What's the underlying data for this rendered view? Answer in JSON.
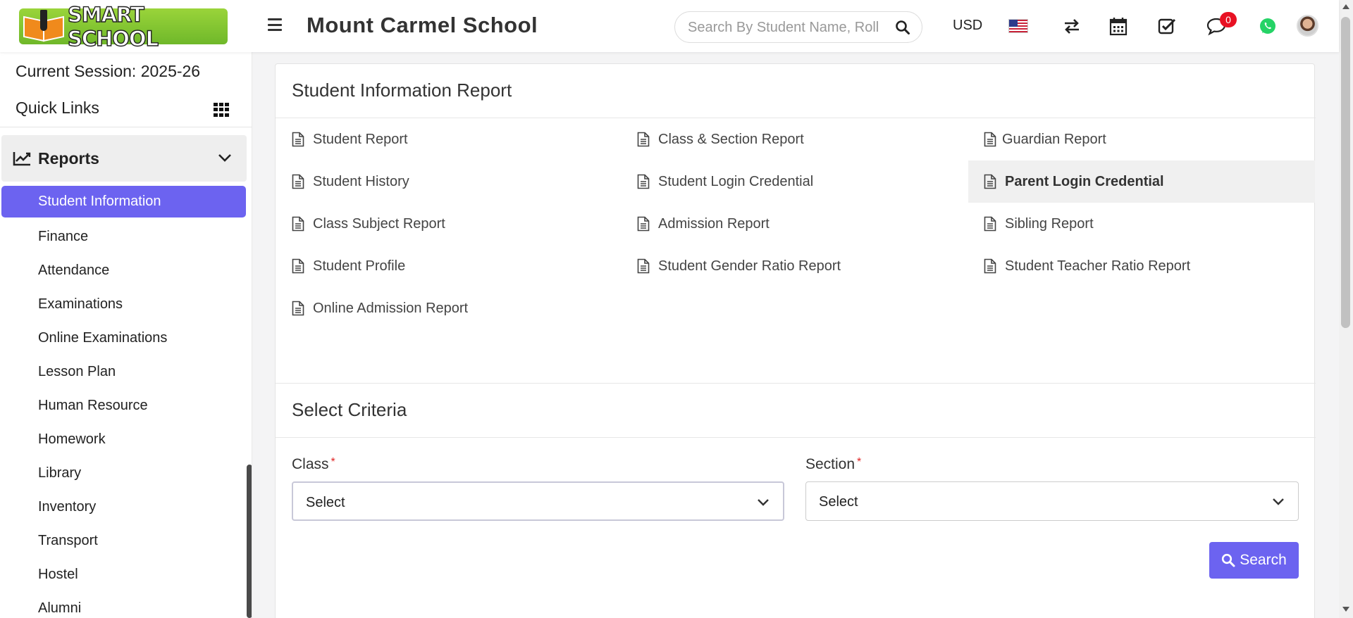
{
  "header": {
    "logo_text": "SMART SCHOOL",
    "school_name": "Mount Carmel School",
    "search_placeholder": "Search By Student Name, Roll Number, Enroll Number, National Id, Local Id Etc.",
    "currency": "USD",
    "notification_count": "0",
    "icons": [
      "menu-icon",
      "search-icon",
      "us-flag-icon",
      "swap-icon",
      "calendar-icon",
      "checkbox-icon",
      "chat-icon",
      "whatsapp-icon",
      "avatar"
    ]
  },
  "sidebar": {
    "session_label": "Current Session: 2025-26",
    "quick_links_label": "Quick Links",
    "section_label": "Reports",
    "items": [
      {
        "label": "Student Information",
        "active": true
      },
      {
        "label": "Finance"
      },
      {
        "label": "Attendance"
      },
      {
        "label": "Examinations"
      },
      {
        "label": "Online Examinations"
      },
      {
        "label": "Lesson Plan"
      },
      {
        "label": "Human Resource"
      },
      {
        "label": "Homework"
      },
      {
        "label": "Library"
      },
      {
        "label": "Inventory"
      },
      {
        "label": "Transport"
      },
      {
        "label": "Hostel"
      },
      {
        "label": "Alumni"
      }
    ]
  },
  "main": {
    "report_title": "Student Information Report",
    "reports": [
      [
        "Student Report",
        "Class & Section Report",
        "Guardian Report"
      ],
      [
        "Student History",
        "Student Login Credential",
        "Parent Login Credential"
      ],
      [
        "Class Subject Report",
        "Admission Report",
        "Sibling Report"
      ],
      [
        "Student Profile",
        "Student Gender Ratio Report",
        "Student Teacher Ratio Report"
      ],
      [
        "Online Admission Report"
      ]
    ],
    "highlighted_report": "Parent Login Credential",
    "criteria_title": "Select Criteria",
    "class_label": "Class",
    "section_label": "Section",
    "required_mark": "*",
    "class_value": "Select",
    "section_value": "Select",
    "search_button": "Search"
  },
  "colors": {
    "accent": "#6c63f0",
    "logo_green": "#8cc63f",
    "badge_red": "#e81123",
    "whatsapp_green": "#25d366"
  }
}
